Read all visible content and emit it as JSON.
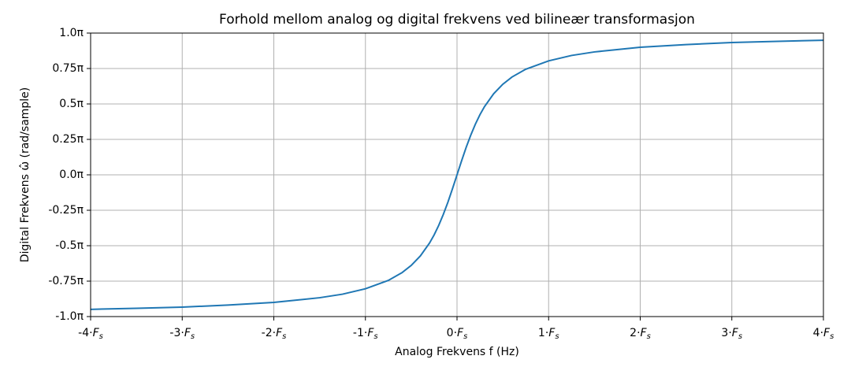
{
  "chart_data": {
    "type": "line",
    "title": "Forhold mellom analog og digital frekvens ved bilineær transformasjon",
    "x_label": "Analog Frekvens f (Hz)",
    "y_label": "Digital Frekvens ω̂ (rad/sample)",
    "x": [
      -4,
      -3.5,
      -3,
      -2.5,
      -2,
      -1.5,
      -1.25,
      -1,
      -0.75,
      -0.6,
      -0.5,
      -0.4,
      -0.3,
      -0.25,
      -0.2,
      -0.15,
      -0.1,
      -0.05,
      0,
      0.05,
      0.1,
      0.15,
      0.2,
      0.25,
      0.3,
      0.4,
      0.5,
      0.6,
      0.75,
      1,
      1.25,
      1.5,
      2,
      2.5,
      3,
      3.5,
      4
    ],
    "series": [
      {
        "color": "#1f77b4",
        "values": [
          -0.949,
          -0.942,
          -0.933,
          -0.919,
          -0.9,
          -0.867,
          -0.842,
          -0.804,
          -0.745,
          -0.69,
          -0.639,
          -0.572,
          -0.481,
          -0.424,
          -0.357,
          -0.28,
          -0.194,
          -0.099,
          0,
          0.099,
          0.194,
          0.28,
          0.357,
          0.424,
          0.481,
          0.572,
          0.639,
          0.69,
          0.745,
          0.804,
          0.842,
          0.867,
          0.9,
          0.919,
          0.933,
          0.942,
          0.949
        ]
      }
    ],
    "xlim": [
      -4,
      4
    ],
    "ylim": [
      -1,
      1
    ],
    "xticks": [
      {
        "value": -4,
        "label": "-4·Fs"
      },
      {
        "value": -3,
        "label": "-3·Fs"
      },
      {
        "value": -2,
        "label": "-2·Fs"
      },
      {
        "value": -1,
        "label": "-1·Fs"
      },
      {
        "value": 0,
        "label": "0·Fs"
      },
      {
        "value": 1,
        "label": "1·Fs"
      },
      {
        "value": 2,
        "label": "2·Fs"
      },
      {
        "value": 3,
        "label": "3·Fs"
      },
      {
        "value": 4,
        "label": "4·Fs"
      }
    ],
    "yticks": [
      {
        "value": -1,
        "label": "-1.0π"
      },
      {
        "value": -0.75,
        "label": "-0.75π"
      },
      {
        "value": -0.5,
        "label": "-0.5π"
      },
      {
        "value": -0.25,
        "label": "-0.25π"
      },
      {
        "value": 0,
        "label": "0.0π"
      },
      {
        "value": 0.25,
        "label": "0.25π"
      },
      {
        "value": 0.5,
        "label": "0.5π"
      },
      {
        "value": 0.75,
        "label": "0.75π"
      },
      {
        "value": 1,
        "label": "1.0π"
      }
    ],
    "grid": true
  }
}
